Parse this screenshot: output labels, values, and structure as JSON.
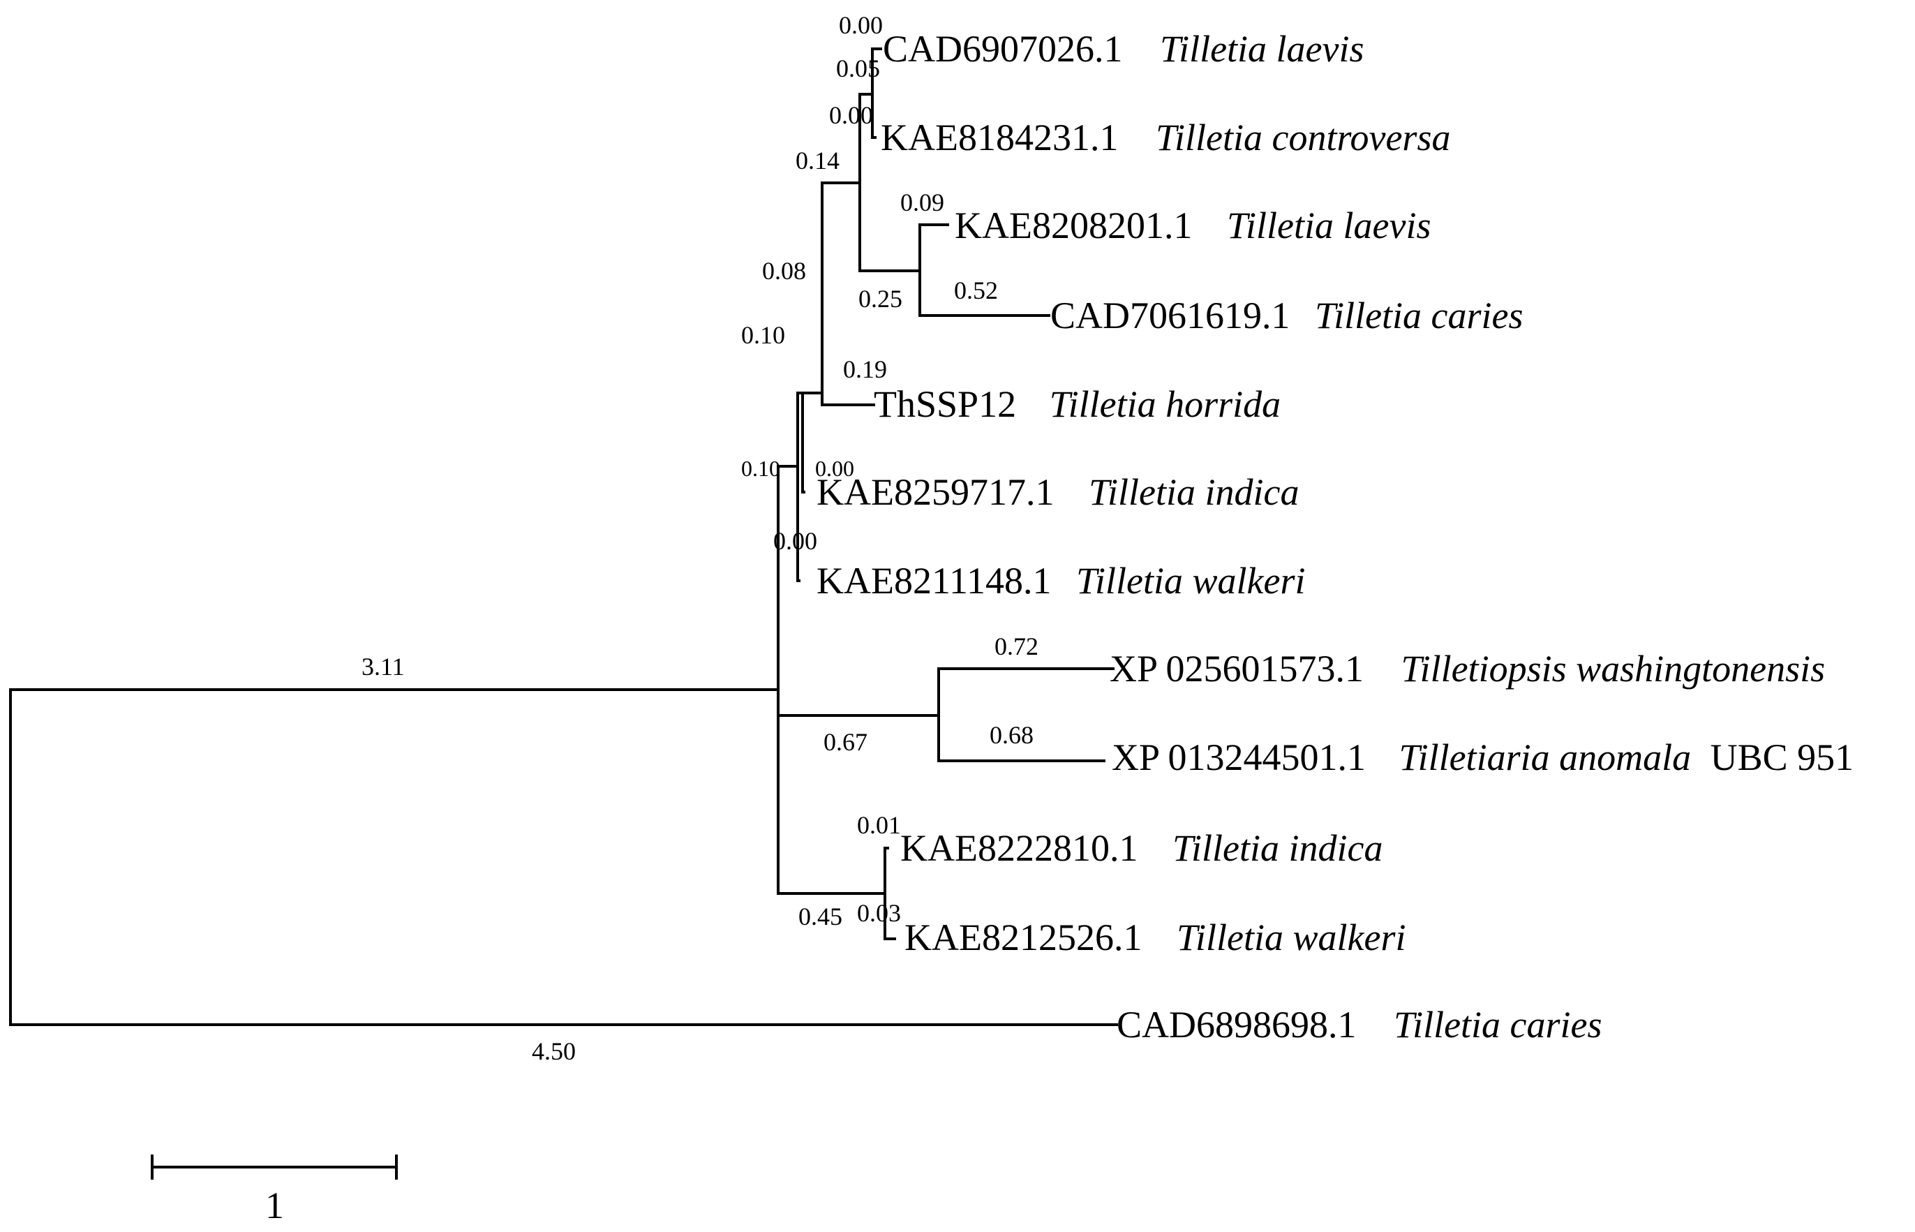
{
  "colors": {
    "ink": "#000000",
    "background": "#ffffff"
  },
  "tree": {
    "leaves": [
      {
        "id": "l1",
        "accession": "CAD6907026.1",
        "species": "Tilletia laevis",
        "suffix": "",
        "branch_length": "0.00"
      },
      {
        "id": "l2",
        "accession": "KAE8184231.1",
        "species": "Tilletia controversa",
        "suffix": "",
        "branch_length": "0.00"
      },
      {
        "id": "l3",
        "accession": "KAE8208201.1",
        "species": "Tilletia laevis",
        "suffix": "",
        "branch_length": "0.09"
      },
      {
        "id": "l4",
        "accession": "CAD7061619.1",
        "species": "Tilletia caries",
        "suffix": "",
        "branch_length": "0.52"
      },
      {
        "id": "l5",
        "accession": "ThSSP12",
        "species": "Tilletia horrida",
        "suffix": "",
        "branch_length": "0.19"
      },
      {
        "id": "l6",
        "accession": "KAE8259717.1",
        "species": "Tilletia indica",
        "suffix": "",
        "branch_length": "0.00"
      },
      {
        "id": "l7",
        "accession": "KAE8211148.1",
        "species": "Tilletia walkeri",
        "suffix": "",
        "branch_length": "0.00"
      },
      {
        "id": "l8",
        "accession": "XP 025601573.1",
        "species": "Tilletiopsis washingtonensis",
        "suffix": "",
        "branch_length": "0.72"
      },
      {
        "id": "l9",
        "accession": "XP 013244501.1",
        "species": "Tilletiaria anomala",
        "suffix": "UBC 951",
        "branch_length": "0.68"
      },
      {
        "id": "l10",
        "accession": "KAE8222810.1",
        "species": "Tilletia indica",
        "suffix": "",
        "branch_length": "0.01"
      },
      {
        "id": "l11",
        "accession": "KAE8212526.1",
        "species": "Tilletia walkeri",
        "suffix": "",
        "branch_length": "0.03"
      },
      {
        "id": "l12",
        "accession": "CAD6898698.1",
        "species": "Tilletia caries",
        "suffix": "",
        "branch_length": "4.50"
      }
    ],
    "internal_branches": [
      {
        "id": "n_laevis_controversa",
        "branch_length": "0.05"
      },
      {
        "id": "n_laevis_caries",
        "branch_length": "0.25"
      },
      {
        "id": "n_top_clade",
        "branch_length": "0.14"
      },
      {
        "id": "n_with_horrida",
        "branch_length": "0.08"
      },
      {
        "id": "n_with_indica_walkeri",
        "branch_length": "0.10"
      },
      {
        "id": "n_outer_clade",
        "branch_length": "0.10"
      },
      {
        "id": "n_tilletiopsis",
        "branch_length": "0.67"
      },
      {
        "id": "n_indica_walkeri_2",
        "branch_length": "0.45"
      },
      {
        "id": "n_ingroup",
        "branch_length": "3.11"
      }
    ]
  },
  "scale_bar": {
    "label": "1"
  }
}
